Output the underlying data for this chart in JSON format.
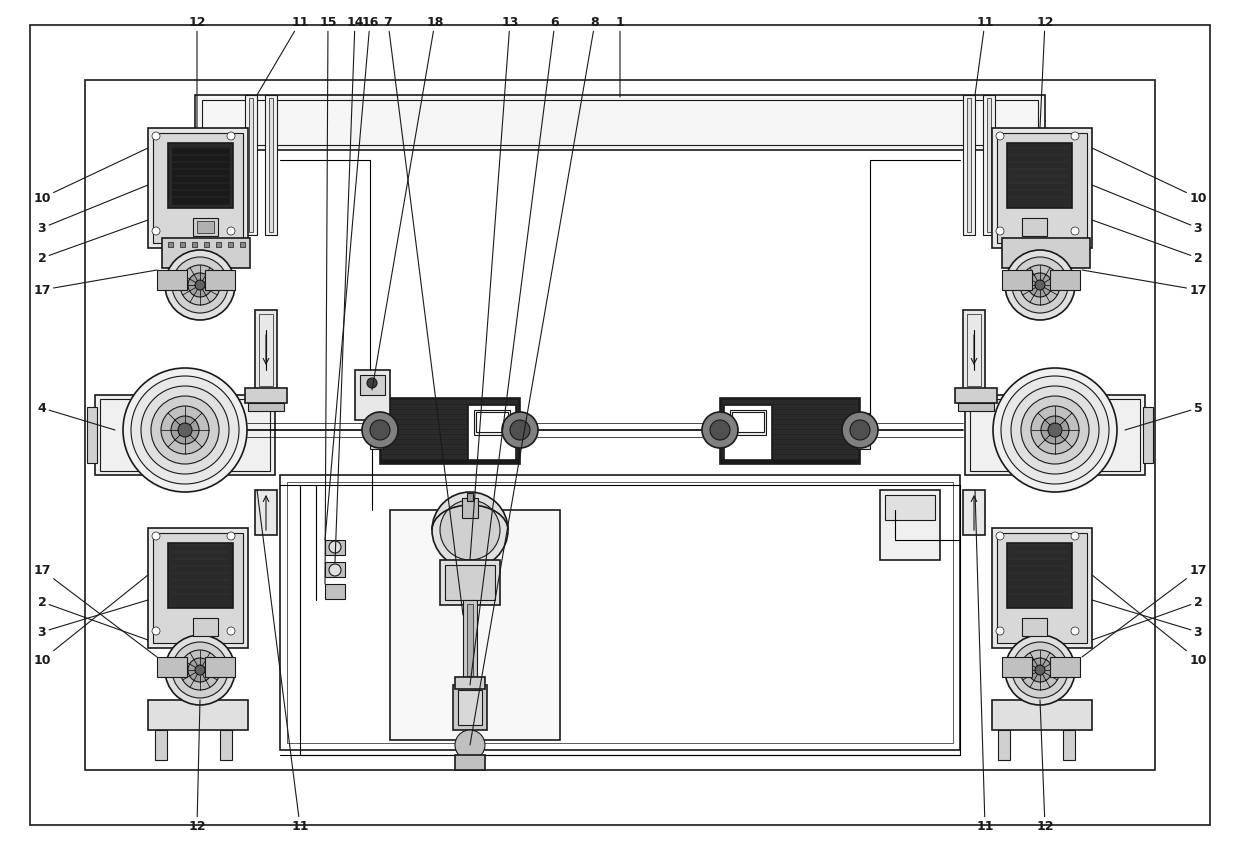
{
  "fig_width": 12.4,
  "fig_height": 8.51,
  "bg_color": "#ffffff",
  "line_color": "#1a1a1a",
  "fig_dpi": 100
}
